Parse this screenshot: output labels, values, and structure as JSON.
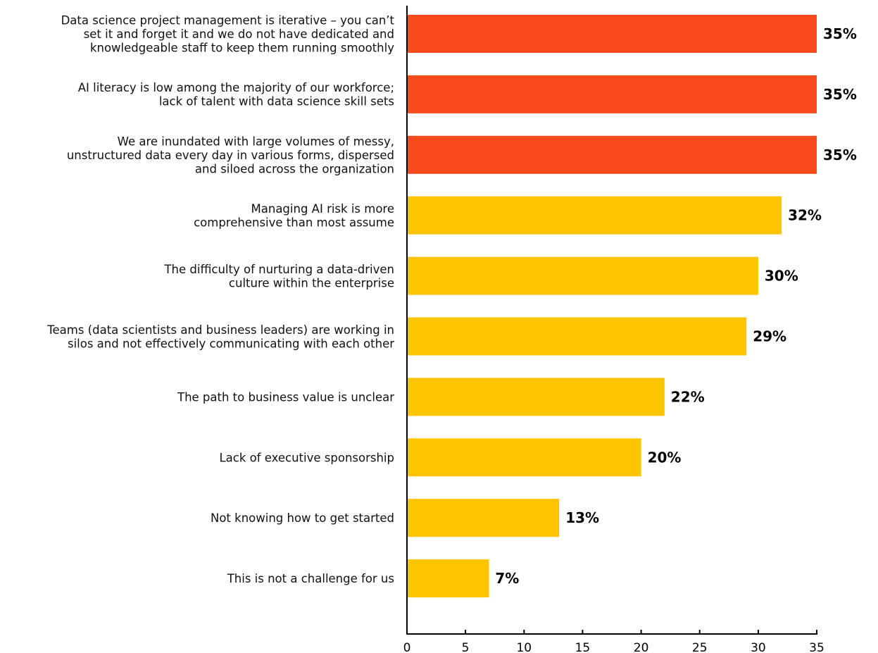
{
  "chart_data": {
    "type": "bar",
    "orientation": "horizontal",
    "categories": [
      "Data science project management is iterative – you can’t set it and forget it and we do not have dedicated and knowledgeable staff to keep them running smoothly",
      "AI literacy is low among the majority of our workforce; lack of talent with data science skill sets",
      "We are inundated with large volumes of messy, unstructured data every day in various forms, dispersed and siloed across the organization",
      "Managing AI risk is more comprehensive than most assume",
      "The difficulty of nurturing a data-driven culture within the enterprise",
      "Teams (data scientists and business leaders) are working in silos and not effectively communicating with each other",
      "The path to business value is unclear",
      "Lack of executive sponsorship",
      "Not knowing how to get started",
      "This is not a challenge for us"
    ],
    "category_lines": [
      [
        "Data science project management is iterative – you can’t",
        "set it and forget it and we do not have dedicated and",
        "knowledgeable staff to keep them running smoothly"
      ],
      [
        "AI literacy is low among the majority of our workforce;",
        "lack of talent with data science skill sets"
      ],
      [
        "We are inundated with large volumes of messy,",
        "unstructured data every day in various forms, dispersed",
        "and siloed across the organization"
      ],
      [
        "Managing AI risk is more",
        "comprehensive than most assume"
      ],
      [
        "The difficulty of nurturing a data-driven",
        "culture within the enterprise"
      ],
      [
        "Teams (data scientists and business leaders) are working in",
        "silos and not effectively communicating with each other"
      ],
      [
        "The path to business value is unclear"
      ],
      [
        "Lack of executive sponsorship"
      ],
      [
        "Not knowing how to get started"
      ],
      [
        "This is not a challenge for us"
      ]
    ],
    "values": [
      35,
      35,
      35,
      32,
      30,
      29,
      22,
      20,
      13,
      7
    ],
    "value_labels": [
      "35%",
      "35%",
      "35%",
      "32%",
      "30%",
      "29%",
      "22%",
      "20%",
      "13%",
      "7%"
    ],
    "highlighted": [
      true,
      true,
      true,
      false,
      false,
      false,
      false,
      false,
      false,
      false
    ],
    "colors": {
      "highlight": "#f84a1b",
      "default": "#fdc400"
    },
    "xlim": [
      0,
      35
    ],
    "xticks": [
      0,
      5,
      10,
      15,
      20,
      25,
      30,
      35
    ],
    "title": "",
    "xlabel": "",
    "ylabel": "",
    "grid": false,
    "legend": "none"
  }
}
